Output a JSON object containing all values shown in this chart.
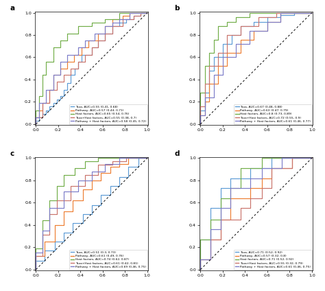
{
  "colors": [
    "#5B9BD5",
    "#ED7D31",
    "#70AD47",
    "#C9736B",
    "#7B7BC8"
  ],
  "panel_a": {
    "title": "a",
    "legend_texts": [
      "Taxa, AUC=0.55 (0.41, 0.68)",
      "Pathway, AUC=0.57 (0.44, 0.71)",
      "Host factors, AUC=0.65 (0.54, 0.76)",
      "Taxa+Host factors, AUC=0.55 (0.38, 0.7)",
      "Pathway + Host factors, AUC=0.58 (0.45, 0.72)"
    ],
    "curves": [
      {
        "fpr": [
          0.0,
          0.0,
          0.03,
          0.03,
          0.06,
          0.06,
          0.09,
          0.09,
          0.12,
          0.12,
          0.16,
          0.16,
          0.19,
          0.19,
          0.22,
          0.22,
          0.25,
          0.25,
          0.28,
          0.28,
          0.31,
          0.31,
          0.35,
          0.35,
          0.38,
          0.38,
          0.41,
          0.41,
          0.5,
          0.5,
          0.56,
          0.56,
          0.62,
          0.62,
          0.69,
          0.69,
          0.75,
          0.75,
          0.81,
          0.81,
          0.88,
          0.88,
          0.94,
          0.94,
          1.0
        ],
        "tpr": [
          0.0,
          0.03,
          0.03,
          0.06,
          0.06,
          0.09,
          0.09,
          0.12,
          0.12,
          0.16,
          0.16,
          0.19,
          0.19,
          0.22,
          0.22,
          0.25,
          0.25,
          0.31,
          0.31,
          0.37,
          0.37,
          0.44,
          0.44,
          0.5,
          0.5,
          0.56,
          0.56,
          0.62,
          0.62,
          0.69,
          0.69,
          0.75,
          0.75,
          0.81,
          0.81,
          0.88,
          0.88,
          0.91,
          0.91,
          0.94,
          0.94,
          0.97,
          0.97,
          1.0,
          1.0
        ]
      },
      {
        "fpr": [
          0.0,
          0.0,
          0.03,
          0.03,
          0.06,
          0.06,
          0.12,
          0.12,
          0.16,
          0.16,
          0.22,
          0.22,
          0.28,
          0.28,
          0.34,
          0.34,
          0.41,
          0.41,
          0.47,
          0.47,
          0.56,
          0.56,
          0.62,
          0.62,
          0.69,
          0.69,
          0.78,
          0.78,
          0.84,
          0.84,
          1.0
        ],
        "tpr": [
          0.0,
          0.06,
          0.06,
          0.12,
          0.12,
          0.19,
          0.19,
          0.31,
          0.31,
          0.44,
          0.44,
          0.5,
          0.5,
          0.56,
          0.56,
          0.62,
          0.62,
          0.69,
          0.69,
          0.75,
          0.75,
          0.81,
          0.81,
          0.88,
          0.88,
          0.94,
          0.94,
          0.97,
          0.97,
          1.0,
          1.0
        ]
      },
      {
        "fpr": [
          0.0,
          0.0,
          0.03,
          0.03,
          0.06,
          0.06,
          0.09,
          0.09,
          0.16,
          0.16,
          0.22,
          0.22,
          0.28,
          0.28,
          0.38,
          0.38,
          0.5,
          0.5,
          0.62,
          0.62,
          0.75,
          0.75,
          1.0
        ],
        "tpr": [
          0.0,
          0.12,
          0.12,
          0.25,
          0.25,
          0.44,
          0.44,
          0.56,
          0.56,
          0.69,
          0.69,
          0.75,
          0.75,
          0.81,
          0.81,
          0.88,
          0.88,
          0.91,
          0.91,
          0.94,
          0.94,
          1.0,
          1.0
        ]
      },
      {
        "fpr": [
          0.0,
          0.0,
          0.06,
          0.06,
          0.12,
          0.12,
          0.19,
          0.19,
          0.25,
          0.25,
          0.31,
          0.31,
          0.38,
          0.38,
          0.44,
          0.44,
          0.5,
          0.5,
          0.56,
          0.56,
          0.62,
          0.62,
          0.69,
          0.69,
          0.78,
          0.78,
          0.88,
          0.88,
          0.94,
          0.94,
          1.0
        ],
        "tpr": [
          0.0,
          0.06,
          0.06,
          0.19,
          0.19,
          0.31,
          0.31,
          0.38,
          0.38,
          0.44,
          0.44,
          0.5,
          0.5,
          0.56,
          0.56,
          0.62,
          0.62,
          0.69,
          0.69,
          0.75,
          0.75,
          0.81,
          0.81,
          0.88,
          0.88,
          0.94,
          0.94,
          0.97,
          0.97,
          1.0,
          1.0
        ]
      },
      {
        "fpr": [
          0.0,
          0.0,
          0.03,
          0.03,
          0.09,
          0.09,
          0.16,
          0.16,
          0.22,
          0.22,
          0.28,
          0.28,
          0.38,
          0.38,
          0.44,
          0.44,
          0.53,
          0.53,
          0.62,
          0.62,
          0.69,
          0.69,
          0.75,
          0.75,
          0.84,
          0.84,
          1.0
        ],
        "tpr": [
          0.0,
          0.06,
          0.06,
          0.19,
          0.19,
          0.31,
          0.31,
          0.44,
          0.44,
          0.56,
          0.56,
          0.62,
          0.62,
          0.69,
          0.69,
          0.75,
          0.75,
          0.81,
          0.81,
          0.88,
          0.88,
          0.91,
          0.91,
          0.94,
          0.94,
          1.0,
          1.0
        ]
      }
    ]
  },
  "panel_b": {
    "title": "b",
    "legend_texts": [
      "Taxa, AUC=0.67 (0.48, 0.88)",
      "Pathway, AUC=0.63 (0.47, 0.79)",
      "Host factors, AUC=0.8 (0.73, 0.89)",
      "Taxa+Host factors, AUC=0.72 (0.55, 0.9)",
      "Pathway + Host factors, AUC=0.61 (0.46, 0.77)"
    ],
    "curves": [
      {
        "fpr": [
          0.0,
          0.0,
          0.04,
          0.04,
          0.08,
          0.08,
          0.12,
          0.12,
          0.2,
          0.2,
          0.28,
          0.28,
          0.36,
          0.36,
          0.48,
          0.48,
          0.6,
          0.6,
          0.72,
          0.72,
          0.84,
          0.84,
          1.0
        ],
        "tpr": [
          0.0,
          0.12,
          0.12,
          0.28,
          0.28,
          0.48,
          0.48,
          0.6,
          0.6,
          0.72,
          0.72,
          0.8,
          0.8,
          0.88,
          0.88,
          0.92,
          0.92,
          0.96,
          0.96,
          0.98,
          0.98,
          1.0,
          1.0
        ]
      },
      {
        "fpr": [
          0.0,
          0.0,
          0.04,
          0.04,
          0.08,
          0.08,
          0.16,
          0.16,
          0.24,
          0.24,
          0.36,
          0.36,
          0.48,
          0.48,
          0.6,
          0.6,
          0.72,
          0.72,
          1.0
        ],
        "tpr": [
          0.0,
          0.08,
          0.08,
          0.2,
          0.2,
          0.36,
          0.36,
          0.52,
          0.52,
          0.64,
          0.64,
          0.76,
          0.76,
          0.84,
          0.84,
          0.92,
          0.92,
          1.0,
          1.0
        ]
      },
      {
        "fpr": [
          0.0,
          0.0,
          0.04,
          0.04,
          0.08,
          0.08,
          0.12,
          0.12,
          0.16,
          0.16,
          0.24,
          0.24,
          0.32,
          0.32,
          0.44,
          0.44,
          0.6,
          0.6,
          1.0
        ],
        "tpr": [
          0.0,
          0.28,
          0.28,
          0.52,
          0.52,
          0.64,
          0.64,
          0.76,
          0.76,
          0.88,
          0.88,
          0.92,
          0.92,
          0.96,
          0.96,
          1.0,
          1.0,
          1.0,
          1.0
        ]
      },
      {
        "fpr": [
          0.0,
          0.0,
          0.04,
          0.04,
          0.08,
          0.08,
          0.16,
          0.16,
          0.24,
          0.24,
          0.36,
          0.36,
          0.52,
          0.52,
          0.68,
          0.68,
          1.0
        ],
        "tpr": [
          0.0,
          0.16,
          0.16,
          0.36,
          0.36,
          0.52,
          0.52,
          0.64,
          0.64,
          0.8,
          0.8,
          0.88,
          0.88,
          0.96,
          0.96,
          1.0,
          1.0
        ]
      },
      {
        "fpr": [
          0.0,
          0.0,
          0.04,
          0.04,
          0.12,
          0.12,
          0.2,
          0.2,
          0.32,
          0.32,
          0.44,
          0.44,
          0.6,
          0.6,
          0.72,
          0.72,
          1.0
        ],
        "tpr": [
          0.0,
          0.08,
          0.08,
          0.24,
          0.24,
          0.44,
          0.44,
          0.6,
          0.6,
          0.72,
          0.72,
          0.84,
          0.84,
          0.92,
          0.92,
          1.0,
          1.0
        ]
      }
    ]
  },
  "panel_c": {
    "title": "c",
    "legend_texts": [
      "Taxa, AUC=0.51 (0.3, 0.73)",
      "Pathway, AUC=0.61 (0.49, 0.76)",
      "Host factors, AUC=0.74 (0.62, 0.87)",
      "Taxa+Host factors, AUC=0.61 (0.42, 0.81)",
      "Pathway + Host factors, AUC=0.69 (0.46, 0.75)"
    ],
    "curves": [
      {
        "fpr": [
          0.0,
          0.0,
          0.08,
          0.08,
          0.17,
          0.17,
          0.25,
          0.25,
          0.33,
          0.33,
          0.42,
          0.42,
          0.5,
          0.5,
          0.58,
          0.58,
          0.67,
          0.67,
          0.75,
          0.75,
          0.83,
          0.83,
          0.92,
          0.92,
          1.0
        ],
        "tpr": [
          0.0,
          0.08,
          0.08,
          0.17,
          0.17,
          0.25,
          0.25,
          0.33,
          0.33,
          0.42,
          0.42,
          0.5,
          0.5,
          0.58,
          0.58,
          0.67,
          0.67,
          0.75,
          0.75,
          0.83,
          0.83,
          0.92,
          0.92,
          1.0,
          1.0
        ]
      },
      {
        "fpr": [
          0.0,
          0.0,
          0.08,
          0.08,
          0.17,
          0.17,
          0.25,
          0.25,
          0.33,
          0.33,
          0.42,
          0.42,
          0.5,
          0.5,
          0.58,
          0.58,
          0.67,
          0.67,
          0.75,
          0.75,
          0.83,
          0.83,
          1.0
        ],
        "tpr": [
          0.0,
          0.12,
          0.12,
          0.25,
          0.25,
          0.4,
          0.4,
          0.52,
          0.52,
          0.62,
          0.62,
          0.72,
          0.72,
          0.8,
          0.8,
          0.87,
          0.87,
          0.92,
          0.92,
          0.95,
          0.95,
          1.0,
          1.0
        ]
      },
      {
        "fpr": [
          0.0,
          0.0,
          0.06,
          0.06,
          0.12,
          0.12,
          0.19,
          0.19,
          0.25,
          0.25,
          0.35,
          0.35,
          0.44,
          0.44,
          0.56,
          0.56,
          0.69,
          0.69,
          1.0
        ],
        "tpr": [
          0.0,
          0.19,
          0.19,
          0.44,
          0.44,
          0.62,
          0.62,
          0.75,
          0.75,
          0.85,
          0.85,
          0.91,
          0.91,
          0.97,
          0.97,
          1.0,
          1.0,
          1.0,
          1.0
        ]
      },
      {
        "fpr": [
          0.0,
          0.0,
          0.06,
          0.06,
          0.12,
          0.12,
          0.19,
          0.19,
          0.31,
          0.31,
          0.44,
          0.44,
          0.56,
          0.56,
          0.69,
          0.69,
          0.81,
          0.81,
          1.0
        ],
        "tpr": [
          0.0,
          0.12,
          0.12,
          0.31,
          0.31,
          0.5,
          0.5,
          0.62,
          0.62,
          0.75,
          0.75,
          0.85,
          0.85,
          0.94,
          0.94,
          0.97,
          0.97,
          1.0,
          1.0
        ]
      },
      {
        "fpr": [
          0.0,
          0.0,
          0.06,
          0.06,
          0.12,
          0.12,
          0.25,
          0.25,
          0.38,
          0.38,
          0.5,
          0.5,
          0.62,
          0.62,
          0.75,
          0.75,
          1.0
        ],
        "tpr": [
          0.0,
          0.15,
          0.15,
          0.35,
          0.35,
          0.55,
          0.55,
          0.7,
          0.7,
          0.8,
          0.8,
          0.88,
          0.88,
          0.95,
          0.95,
          1.0,
          1.0
        ]
      }
    ]
  },
  "panel_d": {
    "title": "d",
    "legend_texts": [
      "Taxa, AUC=0.71 (0.52, 0.92)",
      "Pathway, AUC=0.57 (0.32, 0.8)",
      "Host factors, AUC=0.71 (0.52, 0.92)",
      "Taxa+Host factors, AUC=0.55 (0.32, 0.79)",
      "Pathway + Host factors, AUC=0.61 (0.46, 0.75)"
    ],
    "curves": [
      {
        "fpr": [
          0.0,
          0.0,
          0.09,
          0.09,
          0.18,
          0.18,
          0.27,
          0.27,
          0.45,
          0.45,
          0.64,
          0.64,
          1.0
        ],
        "tpr": [
          0.0,
          0.27,
          0.27,
          0.55,
          0.55,
          0.73,
          0.73,
          0.82,
          0.82,
          0.91,
          0.91,
          1.0,
          1.0
        ]
      },
      {
        "fpr": [
          0.0,
          0.0,
          0.09,
          0.09,
          0.18,
          0.18,
          0.27,
          0.27,
          0.45,
          0.45,
          0.55,
          0.55,
          0.64,
          0.64,
          0.82,
          0.82,
          1.0
        ],
        "tpr": [
          0.0,
          0.09,
          0.09,
          0.27,
          0.27,
          0.45,
          0.45,
          0.64,
          0.64,
          0.73,
          0.73,
          0.82,
          0.82,
          0.91,
          0.91,
          1.0,
          1.0
        ]
      },
      {
        "fpr": [
          0.0,
          0.0,
          0.09,
          0.09,
          0.18,
          0.18,
          0.27,
          0.27,
          0.36,
          0.36,
          0.55,
          0.55,
          0.73,
          0.73,
          1.0
        ],
        "tpr": [
          0.0,
          0.27,
          0.27,
          0.45,
          0.45,
          0.64,
          0.64,
          0.73,
          0.73,
          0.91,
          0.91,
          1.0,
          1.0,
          1.0,
          1.0
        ]
      },
      {
        "fpr": [
          0.0,
          0.0,
          0.09,
          0.09,
          0.18,
          0.18,
          0.36,
          0.36,
          0.45,
          0.45,
          0.55,
          0.55,
          0.64,
          0.64,
          0.82,
          0.82,
          1.0
        ],
        "tpr": [
          0.0,
          0.09,
          0.09,
          0.27,
          0.27,
          0.45,
          0.45,
          0.55,
          0.55,
          0.64,
          0.64,
          0.73,
          0.73,
          0.91,
          0.91,
          1.0,
          1.0
        ]
      },
      {
        "fpr": [
          0.0,
          0.0,
          0.09,
          0.09,
          0.18,
          0.18,
          0.27,
          0.27,
          0.45,
          0.45,
          0.55,
          0.55,
          0.73,
          0.73,
          1.0
        ],
        "tpr": [
          0.0,
          0.09,
          0.09,
          0.36,
          0.36,
          0.55,
          0.55,
          0.73,
          0.73,
          0.82,
          0.82,
          0.91,
          0.91,
          1.0,
          1.0
        ]
      }
    ]
  }
}
